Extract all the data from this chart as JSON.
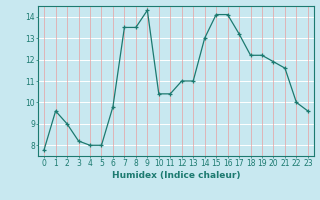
{
  "xlabel": "Humidex (Indice chaleur)",
  "x": [
    0,
    1,
    2,
    3,
    4,
    5,
    6,
    7,
    8,
    9,
    10,
    11,
    12,
    13,
    14,
    15,
    16,
    17,
    18,
    19,
    20,
    21,
    22,
    23
  ],
  "y": [
    7.8,
    9.6,
    9.0,
    8.2,
    8.0,
    8.0,
    9.8,
    13.5,
    13.5,
    14.3,
    10.4,
    10.4,
    11.0,
    11.0,
    13.0,
    14.1,
    14.1,
    13.2,
    12.2,
    12.2,
    11.9,
    11.6,
    10.0,
    9.6
  ],
  "line_color": "#1c7a70",
  "marker": "+",
  "marker_size": 3,
  "bg_color": "#c8e8f0",
  "grid_color_h": "#ffffff",
  "grid_color_v": "#e8a0a0",
  "ylim": [
    7.5,
    14.5
  ],
  "xlim": [
    -0.5,
    23.5
  ],
  "yticks": [
    8,
    9,
    10,
    11,
    12,
    13,
    14
  ],
  "xticks": [
    0,
    1,
    2,
    3,
    4,
    5,
    6,
    7,
    8,
    9,
    10,
    11,
    12,
    13,
    14,
    15,
    16,
    17,
    18,
    19,
    20,
    21,
    22,
    23
  ],
  "tick_fontsize": 5.5,
  "label_fontsize": 6.5
}
